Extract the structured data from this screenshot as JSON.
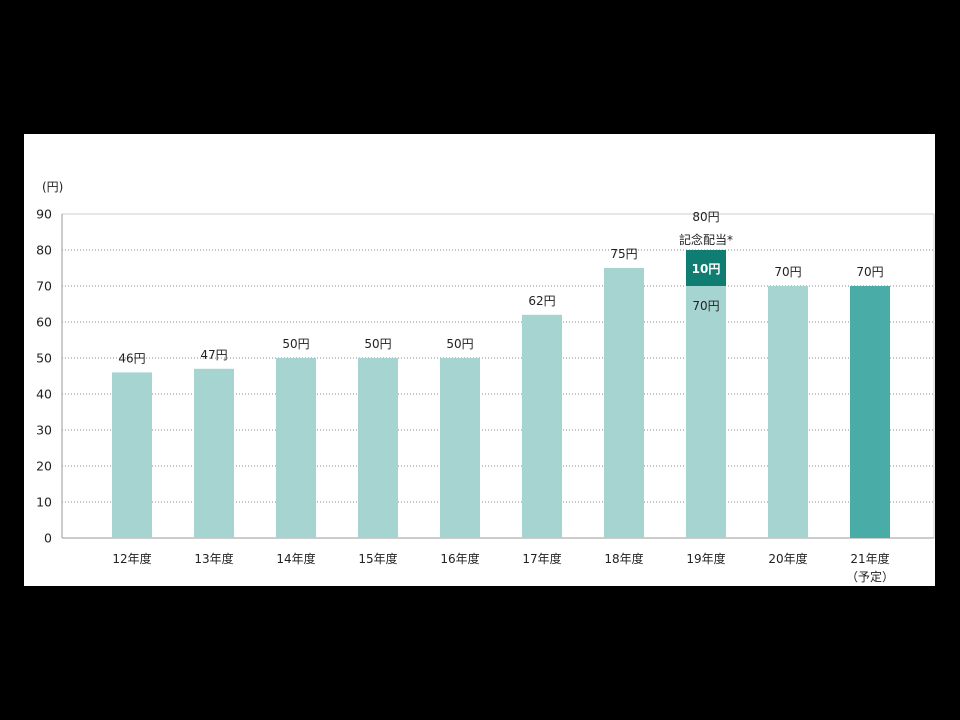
{
  "chart_data": {
    "type": "bar",
    "stacked": true,
    "title": "",
    "xlabel": "",
    "ylabel": "",
    "unit_label": "(円)",
    "ylim": [
      0,
      90
    ],
    "yticks": [
      0,
      10,
      20,
      30,
      40,
      50,
      60,
      70,
      80,
      90
    ],
    "grid": true,
    "categories": [
      "12年度",
      "13年度",
      "14年度",
      "15年度",
      "16年度",
      "17年度",
      "18年度",
      "19年度",
      "20年度",
      "21年度"
    ],
    "category_notes": [
      "",
      "",
      "",
      "",
      "",
      "",
      "",
      "",
      "",
      "（予定）"
    ],
    "series": [
      {
        "values": [
          46,
          47,
          50,
          50,
          50,
          62,
          75,
          70,
          70,
          70
        ]
      },
      {
        "values": [
          0,
          0,
          0,
          0,
          0,
          0,
          0,
          10,
          0,
          0
        ]
      }
    ],
    "data_labels": [
      "46円",
      "47円",
      "50円",
      "50円",
      "50円",
      "62円",
      "75円",
      "80円",
      "70円",
      "70円"
    ],
    "inner_labels": {
      "index": 7,
      "base": "70円",
      "extra": "10円",
      "extra_name": "記念配当*"
    },
    "colors": {
      "regular": "#a6d5d1",
      "commemorative": "#0f7d72",
      "forecast": "#4aaca7"
    }
  }
}
